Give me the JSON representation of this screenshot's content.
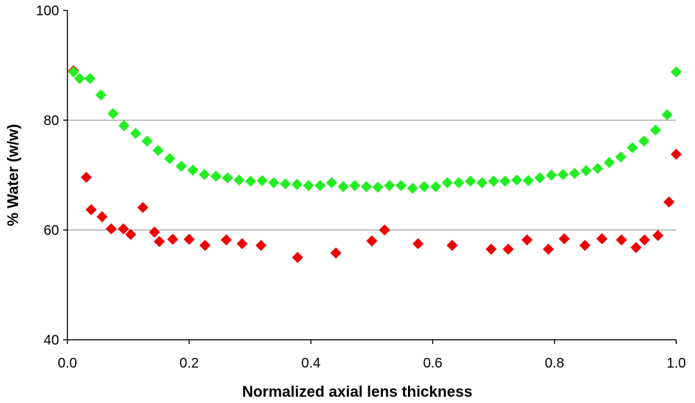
{
  "chart_data": {
    "type": "scatter",
    "title": "",
    "xlabel": "Normalized axial lens thickness",
    "ylabel": "% Water (w/w)",
    "xlim": [
      0,
      1
    ],
    "ylim": [
      40,
      100
    ],
    "x_ticks": [
      {
        "value": 0,
        "label": "0.0"
      },
      {
        "value": 0.2,
        "label": "0.2"
      },
      {
        "value": 0.4,
        "label": "0.4"
      },
      {
        "value": 0.6,
        "label": "0.6"
      },
      {
        "value": 0.8,
        "label": "0.8"
      },
      {
        "value": 1,
        "label": "1.0"
      }
    ],
    "y_ticks": [
      {
        "value": 40,
        "label": "40"
      },
      {
        "value": 60,
        "label": "60"
      },
      {
        "value": 80,
        "label": "80"
      },
      {
        "value": 100,
        "label": "100"
      }
    ],
    "gridlines_y": [
      60,
      80
    ],
    "series": [
      {
        "name": "green",
        "color": "#22ee22",
        "marker": "diamond",
        "points": [
          [
            0.01,
            88.8
          ],
          [
            0.02,
            87.6
          ],
          [
            0.037,
            87.6
          ],
          [
            0.055,
            84.6
          ],
          [
            0.075,
            81.2
          ],
          [
            0.093,
            79.0
          ],
          [
            0.112,
            77.6
          ],
          [
            0.131,
            76.2
          ],
          [
            0.149,
            74.5
          ],
          [
            0.168,
            73.0
          ],
          [
            0.187,
            71.6
          ],
          [
            0.206,
            70.9
          ],
          [
            0.225,
            70.1
          ],
          [
            0.244,
            69.8
          ],
          [
            0.263,
            69.5
          ],
          [
            0.282,
            69.1
          ],
          [
            0.301,
            68.9
          ],
          [
            0.32,
            69.0
          ],
          [
            0.339,
            68.6
          ],
          [
            0.358,
            68.4
          ],
          [
            0.377,
            68.3
          ],
          [
            0.396,
            68.1
          ],
          [
            0.415,
            68.1
          ],
          [
            0.434,
            68.6
          ],
          [
            0.453,
            67.9
          ],
          [
            0.472,
            68.1
          ],
          [
            0.491,
            67.9
          ],
          [
            0.51,
            67.8
          ],
          [
            0.529,
            68.1
          ],
          [
            0.548,
            68.1
          ],
          [
            0.567,
            67.6
          ],
          [
            0.586,
            67.9
          ],
          [
            0.605,
            67.9
          ],
          [
            0.624,
            68.6
          ],
          [
            0.643,
            68.6
          ],
          [
            0.662,
            68.9
          ],
          [
            0.681,
            68.6
          ],
          [
            0.7,
            68.9
          ],
          [
            0.719,
            68.9
          ],
          [
            0.738,
            69.1
          ],
          [
            0.757,
            69.0
          ],
          [
            0.776,
            69.5
          ],
          [
            0.795,
            70.0
          ],
          [
            0.814,
            70.1
          ],
          [
            0.833,
            70.3
          ],
          [
            0.852,
            70.8
          ],
          [
            0.871,
            71.2
          ],
          [
            0.89,
            72.3
          ],
          [
            0.909,
            73.3
          ],
          [
            0.928,
            75.0
          ],
          [
            0.947,
            76.2
          ],
          [
            0.966,
            78.2
          ],
          [
            0.985,
            81.0
          ],
          [
            1.0,
            88.8
          ]
        ]
      },
      {
        "name": "red",
        "color": "#ee0000",
        "marker": "diamond",
        "points": [
          [
            0.01,
            89.0
          ],
          [
            0.031,
            69.6
          ],
          [
            0.039,
            63.7
          ],
          [
            0.057,
            62.4
          ],
          [
            0.072,
            60.2
          ],
          [
            0.092,
            60.2
          ],
          [
            0.104,
            59.2
          ],
          [
            0.124,
            64.1
          ],
          [
            0.143,
            59.6
          ],
          [
            0.151,
            57.9
          ],
          [
            0.173,
            58.3
          ],
          [
            0.2,
            58.3
          ],
          [
            0.226,
            57.2
          ],
          [
            0.261,
            58.2
          ],
          [
            0.287,
            57.5
          ],
          [
            0.318,
            57.2
          ],
          [
            0.378,
            55.0
          ],
          [
            0.441,
            55.8
          ],
          [
            0.5,
            58.0
          ],
          [
            0.521,
            60.0
          ],
          [
            0.576,
            57.5
          ],
          [
            0.632,
            57.2
          ],
          [
            0.696,
            56.5
          ],
          [
            0.724,
            56.5
          ],
          [
            0.755,
            58.2
          ],
          [
            0.79,
            56.5
          ],
          [
            0.816,
            58.4
          ],
          [
            0.85,
            57.2
          ],
          [
            0.878,
            58.4
          ],
          [
            0.91,
            58.2
          ],
          [
            0.934,
            56.8
          ],
          [
            0.948,
            58.2
          ],
          [
            0.97,
            59.0
          ],
          [
            0.988,
            65.1
          ],
          [
            1.0,
            73.8
          ]
        ]
      }
    ]
  }
}
